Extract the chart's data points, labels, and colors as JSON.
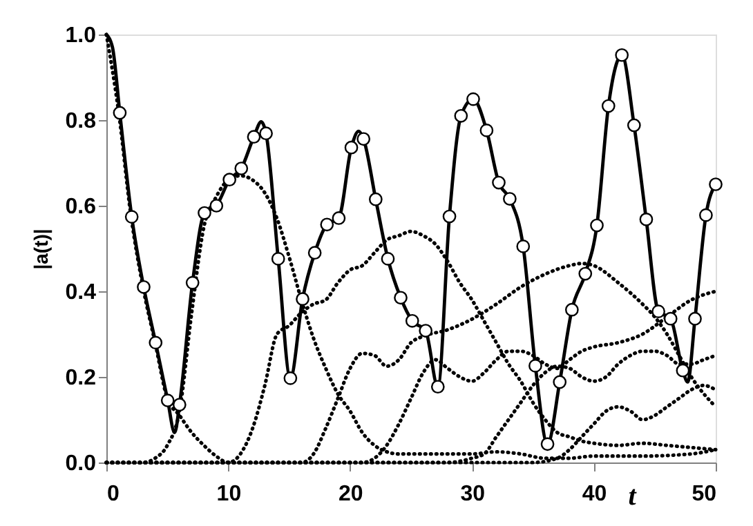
{
  "chart_data": {
    "type": "line",
    "xlabel": "t",
    "ylabel": "|a(t)|",
    "xlim": [
      0,
      50
    ],
    "ylim": [
      0,
      1
    ],
    "xticks": [
      0,
      10,
      20,
      30,
      40,
      50
    ],
    "yticks": [
      {
        "value": 0,
        "label": "0.0"
      },
      0.2,
      0.4,
      0.6,
      0.8,
      {
        "value": 1,
        "label": "1.0"
      }
    ],
    "grid": false,
    "series": [
      {
        "type": "line",
        "line_style": "dotted",
        "color": "#000000",
        "x": [
          0,
          1,
          2,
          3,
          4,
          5,
          6,
          7,
          8,
          9,
          10,
          11,
          12,
          13,
          14,
          15,
          16,
          17,
          18,
          19,
          20,
          21,
          22,
          23,
          24,
          25,
          26,
          27,
          28,
          29,
          30,
          31,
          32,
          33,
          34,
          35,
          36,
          37,
          38,
          39,
          40,
          42,
          44,
          46,
          48,
          50
        ],
        "values": [
          1,
          0.82,
          0.58,
          0.41,
          0.28,
          0.15,
          0.11,
          0.07,
          0.04,
          0.015,
          0,
          0.02,
          0.08,
          0.18,
          0.3,
          0.32,
          0.35,
          0.37,
          0.38,
          0.42,
          0.45,
          0.46,
          0.49,
          0.52,
          0.53,
          0.54,
          0.53,
          0.51,
          0.47,
          0.42,
          0.38,
          0.33,
          0.28,
          0.23,
          0.19,
          0.14,
          0.1,
          0.07,
          0.06,
          0.05,
          0.045,
          0.04,
          0.045,
          0.04,
          0.035,
          0.03
        ]
      },
      {
        "type": "line",
        "line_style": "dotted",
        "color": "#000000",
        "x": [
          0,
          3,
          4,
          5,
          6,
          7,
          8,
          9,
          10,
          11,
          12,
          13,
          14,
          15,
          16,
          17,
          18,
          19,
          20,
          21,
          22,
          23,
          24,
          26,
          28,
          30,
          32,
          34,
          36,
          38,
          40,
          44,
          48,
          50
        ],
        "values": [
          0,
          0,
          0.01,
          0.04,
          0.12,
          0.35,
          0.55,
          0.62,
          0.66,
          0.67,
          0.66,
          0.63,
          0.57,
          0.48,
          0.38,
          0.29,
          0.22,
          0.16,
          0.12,
          0.07,
          0.04,
          0.025,
          0.02,
          0.02,
          0.02,
          0.02,
          0.025,
          0.02,
          0.01,
          0.01,
          0.015,
          0.015,
          0.02,
          0.03
        ]
      },
      {
        "type": "line",
        "line_style": "dotted",
        "color": "#000000",
        "x": [
          0,
          16,
          17,
          18,
          19,
          20,
          21,
          22,
          23,
          24,
          25,
          26,
          28,
          30,
          32,
          34,
          36,
          38,
          39,
          40,
          42,
          44,
          45,
          46,
          47,
          48,
          50
        ],
        "values": [
          0,
          0,
          0.02,
          0.08,
          0.15,
          0.22,
          0.255,
          0.25,
          0.225,
          0.24,
          0.28,
          0.295,
          0.31,
          0.335,
          0.37,
          0.41,
          0.44,
          0.46,
          0.465,
          0.46,
          0.42,
          0.37,
          0.34,
          0.3,
          0.25,
          0.2,
          0.13
        ]
      },
      {
        "type": "line",
        "line_style": "dotted",
        "color": "#000000",
        "x": [
          0,
          21,
          22,
          23,
          24,
          25,
          26,
          27,
          28,
          29,
          30,
          31,
          32,
          33,
          34,
          35,
          36,
          37,
          38,
          39,
          40,
          42,
          44,
          46,
          48,
          50
        ],
        "values": [
          0,
          0,
          0.01,
          0.04,
          0.09,
          0.15,
          0.21,
          0.24,
          0.22,
          0.2,
          0.19,
          0.21,
          0.24,
          0.26,
          0.26,
          0.25,
          0.23,
          0.22,
          0.24,
          0.26,
          0.27,
          0.28,
          0.3,
          0.34,
          0.38,
          0.4
        ]
      },
      {
        "type": "line",
        "line_style": "dotted",
        "color": "#000000",
        "x": [
          0,
          28,
          30,
          31,
          32,
          33,
          34,
          35,
          36,
          37,
          38,
          39,
          40,
          41,
          42,
          43,
          44,
          45,
          46,
          47,
          48,
          49,
          50
        ],
        "values": [
          0,
          0,
          0.01,
          0.02,
          0.06,
          0.1,
          0.14,
          0.18,
          0.21,
          0.225,
          0.22,
          0.2,
          0.19,
          0.2,
          0.23,
          0.25,
          0.26,
          0.26,
          0.25,
          0.23,
          0.23,
          0.24,
          0.25
        ]
      },
      {
        "type": "line",
        "line_style": "dotted",
        "color": "#000000",
        "x": [
          0,
          35,
          37,
          38,
          39,
          40,
          41,
          42,
          43,
          44,
          45,
          46,
          47,
          48,
          49,
          50
        ],
        "values": [
          0,
          0,
          0.01,
          0.03,
          0.06,
          0.09,
          0.12,
          0.13,
          0.12,
          0.1,
          0.11,
          0.13,
          0.15,
          0.17,
          0.18,
          0.17
        ]
      },
      {
        "type": "line",
        "line_style": "solid",
        "color": "#000000",
        "x": [
          0,
          0.5,
          1.1,
          2.08,
          3.06,
          4.04,
          5.03,
          5.6,
          6.0,
          7.07,
          8.05,
          9.03,
          10.1,
          11.07,
          12.1,
          12.7,
          13.1,
          14.1,
          15.1,
          16.1,
          17.1,
          18.1,
          19.07,
          20.1,
          20.7,
          21.1,
          22.1,
          23.1,
          24.15,
          25.1,
          26.2,
          27.2,
          28.15,
          29.1,
          30.1,
          31.2,
          32.2,
          33.1,
          34.2,
          35.2,
          36.2,
          37.2,
          38.2,
          39.3,
          40.25,
          41.2,
          42.3,
          43.3,
          44.3,
          45.3,
          46.3,
          47.3,
          47.7,
          48.3,
          49.2,
          50
        ],
        "values": [
          1,
          0.97,
          0.817,
          0.574,
          0.41,
          0.28,
          0.145,
          0.07,
          0.135,
          0.42,
          0.583,
          0.6,
          0.661,
          0.687,
          0.761,
          0.796,
          0.769,
          0.476,
          0.197,
          0.382,
          0.49,
          0.556,
          0.571,
          0.736,
          0.774,
          0.756,
          0.615,
          0.476,
          0.385,
          0.331,
          0.308,
          0.177,
          0.575,
          0.81,
          0.849,
          0.776,
          0.654,
          0.616,
          0.505,
          0.226,
          0.043,
          0.188,
          0.357,
          0.441,
          0.554,
          0.833,
          0.952,
          0.788,
          0.568,
          0.353,
          0.336,
          0.215,
          0.188,
          0.336,
          0.578,
          0.65
        ]
      },
      {
        "type": "scatter",
        "marker": "circle",
        "color": "#000000",
        "x": [
          1.1,
          2.08,
          3.06,
          4.04,
          5.03,
          6.0,
          7.07,
          8.05,
          9.03,
          10.1,
          11.07,
          12.1,
          13.1,
          14.1,
          15.1,
          16.1,
          17.1,
          18.1,
          19.07,
          20.1,
          21.1,
          22.1,
          23.1,
          24.15,
          25.1,
          26.2,
          27.2,
          28.15,
          29.1,
          30.1,
          31.2,
          32.2,
          33.1,
          34.2,
          35.2,
          36.2,
          37.2,
          38.2,
          39.3,
          40.25,
          41.2,
          42.3,
          43.3,
          44.3,
          45.3,
          46.3,
          47.3,
          48.3,
          49.2,
          50
        ],
        "values": [
          0.817,
          0.574,
          0.41,
          0.28,
          0.145,
          0.135,
          0.42,
          0.583,
          0.6,
          0.661,
          0.687,
          0.761,
          0.769,
          0.476,
          0.197,
          0.382,
          0.49,
          0.556,
          0.571,
          0.736,
          0.756,
          0.615,
          0.476,
          0.385,
          0.331,
          0.308,
          0.177,
          0.575,
          0.81,
          0.849,
          0.776,
          0.654,
          0.616,
          0.505,
          0.226,
          0.043,
          0.188,
          0.357,
          0.441,
          0.554,
          0.833,
          0.952,
          0.788,
          0.568,
          0.353,
          0.336,
          0.215,
          0.336,
          0.578,
          0.65
        ]
      }
    ]
  }
}
